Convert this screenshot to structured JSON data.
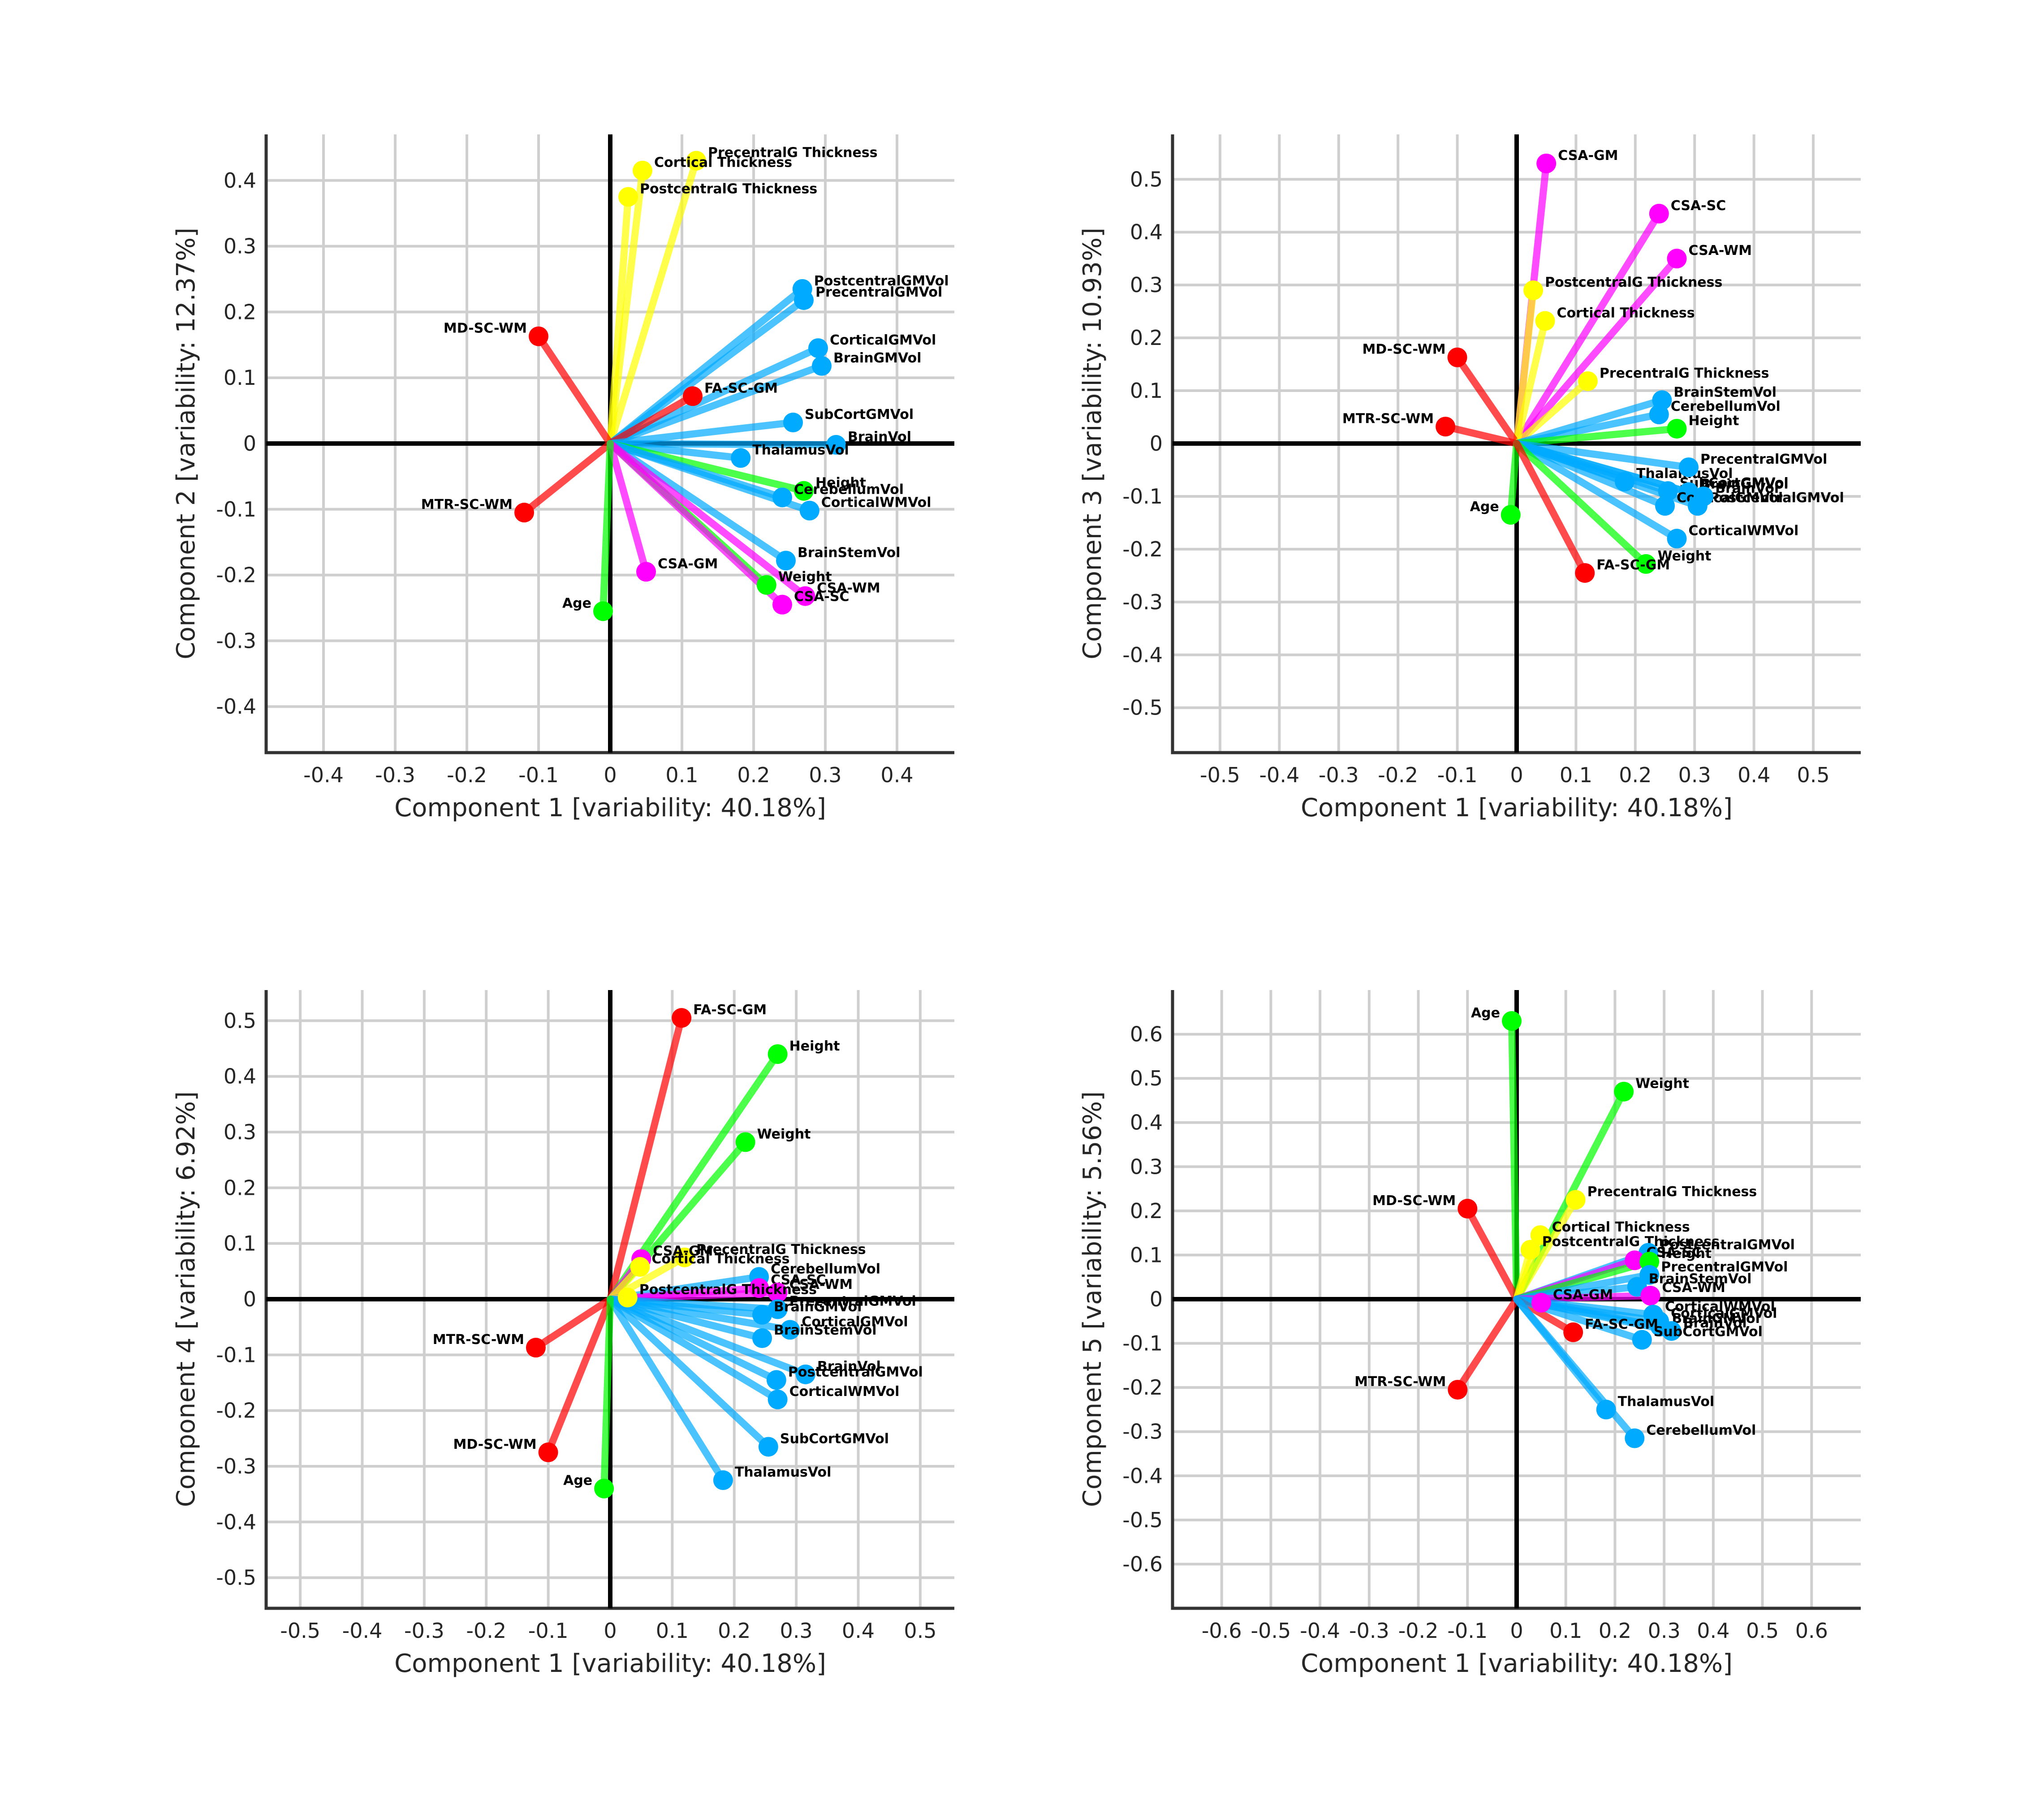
{
  "chart_data": [
    {
      "type": "scatter",
      "xlabel": "Component 1 [variability: 40.18%]",
      "ylabel": "Component 2 [variability: 12.37%]",
      "xlim": [
        -0.48,
        0.48
      ],
      "ylim": [
        -0.47,
        0.47
      ],
      "xticks": [
        -0.4,
        -0.3,
        -0.2,
        -0.1,
        0,
        0.1,
        0.2,
        0.3,
        0.4
      ],
      "xtick_labels": [
        "-0.4",
        "-0.3",
        "-0.2",
        "-0.1",
        "0",
        "0.1",
        "0.2",
        "0.3",
        "0.4"
      ],
      "yticks": [
        -0.4,
        -0.3,
        -0.2,
        -0.1,
        0,
        0.1,
        0.2,
        0.3,
        0.4
      ],
      "ytick_labels": [
        "-0.4",
        "-0.3",
        "-0.2",
        "-0.1",
        "0",
        "0.1",
        "0.2",
        "0.3",
        "0.4"
      ],
      "points": [
        {
          "label": "PrecentralG Thickness",
          "x": 0.12,
          "y": 0.43,
          "color": "#ffff00"
        },
        {
          "label": "Cortical Thickness",
          "x": 0.045,
          "y": 0.415,
          "color": "#ffff00"
        },
        {
          "label": "PostcentralG Thickness",
          "x": 0.025,
          "y": 0.375,
          "color": "#ffff00"
        },
        {
          "label": "PostcentralGMVol",
          "x": 0.268,
          "y": 0.235,
          "color": "#00aaff"
        },
        {
          "label": "PrecentralGMVol",
          "x": 0.27,
          "y": 0.218,
          "color": "#00aaff"
        },
        {
          "label": "CorticalGMVol",
          "x": 0.29,
          "y": 0.145,
          "color": "#00aaff"
        },
        {
          "label": "BrainGMVol",
          "x": 0.295,
          "y": 0.118,
          "color": "#00aaff"
        },
        {
          "label": "MD-SC-WM",
          "x": -0.1,
          "y": 0.163,
          "color": "#ff0000"
        },
        {
          "label": "FA-SC-GM",
          "x": 0.115,
          "y": 0.072,
          "color": "#ff0000"
        },
        {
          "label": "SubCortGMVol",
          "x": 0.255,
          "y": 0.032,
          "color": "#00aaff"
        },
        {
          "label": "BrainVol",
          "x": 0.315,
          "y": -0.002,
          "color": "#00aaff"
        },
        {
          "label": "ThalamusVol",
          "x": 0.182,
          "y": -0.022,
          "color": "#00aaff"
        },
        {
          "label": "Height",
          "x": 0.27,
          "y": -0.072,
          "color": "#00ff00"
        },
        {
          "label": "CerebellumVol",
          "x": 0.24,
          "y": -0.082,
          "color": "#00aaff"
        },
        {
          "label": "CorticalWMVol",
          "x": 0.278,
          "y": -0.102,
          "color": "#00aaff"
        },
        {
          "label": "MTR-SC-WM",
          "x": -0.12,
          "y": -0.105,
          "color": "#ff0000"
        },
        {
          "label": "BrainStemVol",
          "x": 0.245,
          "y": -0.178,
          "color": "#00aaff"
        },
        {
          "label": "CSA-GM",
          "x": 0.05,
          "y": -0.195,
          "color": "#ff00ff"
        },
        {
          "label": "Weight",
          "x": 0.218,
          "y": -0.215,
          "color": "#00ff00"
        },
        {
          "label": "CSA-WM",
          "x": 0.272,
          "y": -0.232,
          "color": "#ff00ff"
        },
        {
          "label": "CSA-SC",
          "x": 0.24,
          "y": -0.245,
          "color": "#ff00ff"
        },
        {
          "label": "Age",
          "x": -0.01,
          "y": -0.255,
          "color": "#00ff00"
        }
      ]
    },
    {
      "type": "scatter",
      "xlabel": "Component 1 [variability: 40.18%]",
      "ylabel": "Component 3 [variability: 10.93%]",
      "xlim": [
        -0.58,
        0.58
      ],
      "ylim": [
        -0.585,
        0.585
      ],
      "xticks": [
        -0.5,
        -0.4,
        -0.3,
        -0.2,
        -0.1,
        0,
        0.1,
        0.2,
        0.3,
        0.4,
        0.5
      ],
      "xtick_labels": [
        "-0.5",
        "-0.4",
        "-0.3",
        "-0.2",
        "-0.1",
        "0",
        "0.1",
        "0.2",
        "0.3",
        "0.4",
        "0.5"
      ],
      "yticks": [
        -0.5,
        -0.4,
        -0.3,
        -0.2,
        -0.1,
        0,
        0.1,
        0.2,
        0.3,
        0.4,
        0.5
      ],
      "ytick_labels": [
        "-0.5",
        "-0.4",
        "-0.3",
        "-0.2",
        "-0.1",
        "0",
        "0.1",
        "0.2",
        "0.3",
        "0.4",
        "0.5"
      ],
      "points": [
        {
          "label": "CSA-GM",
          "x": 0.05,
          "y": 0.53,
          "color": "#ff00ff"
        },
        {
          "label": "CSA-SC",
          "x": 0.24,
          "y": 0.435,
          "color": "#ff00ff"
        },
        {
          "label": "CSA-WM",
          "x": 0.27,
          "y": 0.35,
          "color": "#ff00ff"
        },
        {
          "label": "PostcentralG Thickness",
          "x": 0.028,
          "y": 0.29,
          "color": "#ffff00"
        },
        {
          "label": "Cortical Thickness",
          "x": 0.048,
          "y": 0.232,
          "color": "#ffff00"
        },
        {
          "label": "MD-SC-WM",
          "x": -0.1,
          "y": 0.163,
          "color": "#ff0000"
        },
        {
          "label": "PrecentralG Thickness",
          "x": 0.12,
          "y": 0.118,
          "color": "#ffff00"
        },
        {
          "label": "BrainStemVol",
          "x": 0.245,
          "y": 0.082,
          "color": "#00aaff"
        },
        {
          "label": "CerebellumVol",
          "x": 0.24,
          "y": 0.055,
          "color": "#00aaff"
        },
        {
          "label": "MTR-SC-WM",
          "x": -0.12,
          "y": 0.032,
          "color": "#ff0000"
        },
        {
          "label": "Height",
          "x": 0.27,
          "y": 0.028,
          "color": "#00ff00"
        },
        {
          "label": "ThalamusVol",
          "x": 0.182,
          "y": -0.072,
          "color": "#00aaff"
        },
        {
          "label": "PrecentralGMVol",
          "x": 0.29,
          "y": -0.045,
          "color": "#00aaff"
        },
        {
          "label": "SubCortGMVol",
          "x": 0.255,
          "y": -0.09,
          "color": "#00aaff"
        },
        {
          "label": "BrainGMVol",
          "x": 0.29,
          "y": -0.092,
          "color": "#00aaff"
        },
        {
          "label": "CorticalGMVol",
          "x": 0.25,
          "y": -0.118,
          "color": "#00aaff"
        },
        {
          "label": "PostcentralGMVol",
          "x": 0.305,
          "y": -0.118,
          "color": "#00aaff"
        },
        {
          "label": "BrainVol",
          "x": 0.315,
          "y": -0.1,
          "color": "#00aaff"
        },
        {
          "label": "Age",
          "x": -0.01,
          "y": -0.135,
          "color": "#00ff00"
        },
        {
          "label": "CorticalWMVol",
          "x": 0.27,
          "y": -0.18,
          "color": "#00aaff"
        },
        {
          "label": "Weight",
          "x": 0.218,
          "y": -0.228,
          "color": "#00ff00"
        },
        {
          "label": "FA-SC-GM",
          "x": 0.115,
          "y": -0.245,
          "color": "#ff0000"
        }
      ]
    },
    {
      "type": "scatter",
      "xlabel": "Component 1 [variability: 40.18%]",
      "ylabel": "Component 4 [variability: 6.92%]",
      "xlim": [
        -0.555,
        0.555
      ],
      "ylim": [
        -0.555,
        0.555
      ],
      "xticks": [
        -0.5,
        -0.4,
        -0.3,
        -0.2,
        -0.1,
        0,
        0.1,
        0.2,
        0.3,
        0.4,
        0.5
      ],
      "xtick_labels": [
        "-0.5",
        "-0.4",
        "-0.3",
        "-0.2",
        "-0.1",
        "0",
        "0.1",
        "0.2",
        "0.3",
        "0.4",
        "0.5"
      ],
      "yticks": [
        -0.5,
        -0.4,
        -0.3,
        -0.2,
        -0.1,
        0,
        0.1,
        0.2,
        0.3,
        0.4,
        0.5
      ],
      "ytick_labels": [
        "-0.5",
        "-0.4",
        "-0.3",
        "-0.2",
        "-0.1",
        "0",
        "0.1",
        "0.2",
        "0.3",
        "0.4",
        "0.5"
      ],
      "points": [
        {
          "label": "FA-SC-GM",
          "x": 0.115,
          "y": 0.505,
          "color": "#ff0000"
        },
        {
          "label": "Height",
          "x": 0.27,
          "y": 0.44,
          "color": "#00ff00"
        },
        {
          "label": "Weight",
          "x": 0.218,
          "y": 0.282,
          "color": "#00ff00"
        },
        {
          "label": "PrecentralG Thickness",
          "x": 0.12,
          "y": 0.075,
          "color": "#ffff00"
        },
        {
          "label": "CSA-GM",
          "x": 0.05,
          "y": 0.072,
          "color": "#ff00ff"
        },
        {
          "label": "Cortical Thickness",
          "x": 0.048,
          "y": 0.058,
          "color": "#ffff00"
        },
        {
          "label": "CerebellumVol",
          "x": 0.24,
          "y": 0.04,
          "color": "#00aaff"
        },
        {
          "label": "CSA-SC",
          "x": 0.24,
          "y": 0.02,
          "color": "#ff00ff"
        },
        {
          "label": "CSA-WM",
          "x": 0.27,
          "y": 0.012,
          "color": "#ff00ff"
        },
        {
          "label": "PostcentralG Thickness",
          "x": 0.028,
          "y": 0.003,
          "color": "#ffff00"
        },
        {
          "label": "PrecentralGMVol",
          "x": 0.27,
          "y": -0.018,
          "color": "#00aaff"
        },
        {
          "label": "BrainGMVol",
          "x": 0.245,
          "y": -0.028,
          "color": "#00aaff"
        },
        {
          "label": "CorticalGMVol",
          "x": 0.29,
          "y": -0.055,
          "color": "#00aaff"
        },
        {
          "label": "BrainStemVol",
          "x": 0.245,
          "y": -0.07,
          "color": "#00aaff"
        },
        {
          "label": "MTR-SC-WM",
          "x": -0.12,
          "y": -0.087,
          "color": "#ff0000"
        },
        {
          "label": "BrainVol",
          "x": 0.315,
          "y": -0.135,
          "color": "#00aaff"
        },
        {
          "label": "PostcentralGMVol",
          "x": 0.268,
          "y": -0.145,
          "color": "#00aaff"
        },
        {
          "label": "CorticalWMVol",
          "x": 0.27,
          "y": -0.18,
          "color": "#00aaff"
        },
        {
          "label": "SubCortGMVol",
          "x": 0.255,
          "y": -0.265,
          "color": "#00aaff"
        },
        {
          "label": "MD-SC-WM",
          "x": -0.1,
          "y": -0.275,
          "color": "#ff0000"
        },
        {
          "label": "ThalamusVol",
          "x": 0.182,
          "y": -0.325,
          "color": "#00aaff"
        },
        {
          "label": "Age",
          "x": -0.01,
          "y": -0.34,
          "color": "#00ff00"
        }
      ]
    },
    {
      "type": "scatter",
      "xlabel": "Component 1 [variability: 40.18%]",
      "ylabel": "Component 5 [variability: 5.56%]",
      "xlim": [
        -0.7,
        0.7
      ],
      "ylim": [
        -0.7,
        0.7
      ],
      "xticks": [
        -0.6,
        -0.5,
        -0.4,
        -0.3,
        -0.2,
        -0.1,
        0,
        0.1,
        0.2,
        0.3,
        0.4,
        0.5,
        0.6
      ],
      "xtick_labels": [
        "-0.6",
        "-0.5",
        "-0.4",
        "-0.3",
        "-0.2",
        "-0.1",
        "0",
        "0.1",
        "0.2",
        "0.3",
        "0.4",
        "0.5",
        "0.6"
      ],
      "yticks": [
        -0.6,
        -0.5,
        -0.4,
        -0.3,
        -0.2,
        -0.1,
        0,
        0.1,
        0.2,
        0.3,
        0.4,
        0.5,
        0.6
      ],
      "ytick_labels": [
        "-0.6",
        "-0.5",
        "-0.4",
        "-0.3",
        "-0.2",
        "-0.1",
        "0",
        "0.1",
        "0.2",
        "0.3",
        "0.4",
        "0.5",
        "0.6"
      ],
      "points": [
        {
          "label": "Age",
          "x": -0.01,
          "y": 0.63,
          "color": "#00ff00"
        },
        {
          "label": "Weight",
          "x": 0.218,
          "y": 0.47,
          "color": "#00ff00"
        },
        {
          "label": "PrecentralG Thickness",
          "x": 0.12,
          "y": 0.225,
          "color": "#ffff00"
        },
        {
          "label": "MD-SC-WM",
          "x": -0.1,
          "y": 0.205,
          "color": "#ff0000"
        },
        {
          "label": "Cortical Thickness",
          "x": 0.048,
          "y": 0.145,
          "color": "#ffff00"
        },
        {
          "label": "PostcentralG Thickness",
          "x": 0.028,
          "y": 0.112,
          "color": "#ffff00"
        },
        {
          "label": "PostcentralGMVol",
          "x": 0.268,
          "y": 0.105,
          "color": "#00aaff"
        },
        {
          "label": "CSA-SC",
          "x": 0.24,
          "y": 0.088,
          "color": "#ff00ff"
        },
        {
          "label": "Height",
          "x": 0.27,
          "y": 0.085,
          "color": "#00ff00"
        },
        {
          "label": "PrecentralGMVol",
          "x": 0.27,
          "y": 0.055,
          "color": "#00aaff"
        },
        {
          "label": "BrainStemVol",
          "x": 0.245,
          "y": 0.028,
          "color": "#00aaff"
        },
        {
          "label": "CSA-WM",
          "x": 0.272,
          "y": 0.008,
          "color": "#ff00ff"
        },
        {
          "label": "CSA-GM",
          "x": 0.05,
          "y": -0.008,
          "color": "#ff00ff"
        },
        {
          "label": "CorticalWMVol",
          "x": 0.278,
          "y": -0.035,
          "color": "#00aaff"
        },
        {
          "label": "CorticalGMVol",
          "x": 0.29,
          "y": -0.05,
          "color": "#00aaff"
        },
        {
          "label": "BrainGMVol",
          "x": 0.292,
          "y": -0.062,
          "color": "#00aaff"
        },
        {
          "label": "BrainVol",
          "x": 0.315,
          "y": -0.072,
          "color": "#00aaff"
        },
        {
          "label": "FA-SC-GM",
          "x": 0.115,
          "y": -0.075,
          "color": "#ff0000"
        },
        {
          "label": "SubCortGMVol",
          "x": 0.255,
          "y": -0.092,
          "color": "#00aaff"
        },
        {
          "label": "MTR-SC-WM",
          "x": -0.12,
          "y": -0.205,
          "color": "#ff0000"
        },
        {
          "label": "ThalamusVol",
          "x": 0.182,
          "y": -0.25,
          "color": "#00aaff"
        },
        {
          "label": "CerebellumVol",
          "x": 0.24,
          "y": -0.315,
          "color": "#00aaff"
        }
      ]
    }
  ]
}
